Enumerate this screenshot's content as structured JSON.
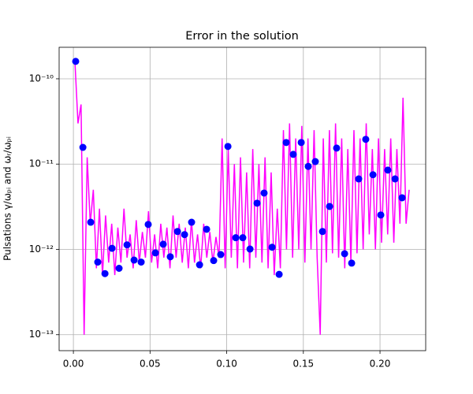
{
  "chart_data": {
    "type": "line",
    "title": "Error in the solution",
    "y_label": "Pulsations  γ/ωₚᵢ and ωᵣ/ωₚᵢ",
    "log_y": true,
    "grid": true,
    "xlim": [
      -0.0093,
      0.2298
    ],
    "ylim": [
      6.5e-14,
      2.34e-10
    ],
    "xticks": [
      {
        "value": 0,
        "label": "0.00"
      },
      {
        "value": 0.05,
        "label": "0.05"
      },
      {
        "value": 0.1,
        "label": "0.10"
      },
      {
        "value": 0.15,
        "label": "0.15"
      },
      {
        "value": 0.2,
        "label": "0.20"
      }
    ],
    "yticks": [
      {
        "value": 1e-13,
        "label": "10⁻¹³"
      },
      {
        "value": 1e-12,
        "label": "10⁻¹²"
      },
      {
        "value": 1e-11,
        "label": "10⁻¹¹"
      },
      {
        "value": 1e-10,
        "label": "10⁻¹⁰"
      }
    ],
    "series": [
      {
        "style": "line",
        "color": "#ff00ff",
        "x": [
          0.001,
          0.003,
          0.005,
          0.007,
          0.009,
          0.011,
          0.013,
          0.015,
          0.017,
          0.019,
          0.021,
          0.023,
          0.025,
          0.027,
          0.029,
          0.031,
          0.033,
          0.035,
          0.037,
          0.039,
          0.041,
          0.043,
          0.045,
          0.047,
          0.049,
          0.051,
          0.053,
          0.055,
          0.057,
          0.059,
          0.061,
          0.063,
          0.065,
          0.067,
          0.069,
          0.071,
          0.073,
          0.075,
          0.077,
          0.079,
          0.081,
          0.083,
          0.085,
          0.087,
          0.089,
          0.091,
          0.093,
          0.095,
          0.097,
          0.099,
          0.101,
          0.103,
          0.105,
          0.107,
          0.109,
          0.111,
          0.113,
          0.115,
          0.117,
          0.119,
          0.121,
          0.123,
          0.125,
          0.127,
          0.129,
          0.131,
          0.133,
          0.135,
          0.137,
          0.139,
          0.141,
          0.143,
          0.145,
          0.147,
          0.149,
          0.151,
          0.153,
          0.155,
          0.157,
          0.159,
          0.161,
          0.163,
          0.165,
          0.167,
          0.169,
          0.171,
          0.173,
          0.175,
          0.177,
          0.179,
          0.181,
          0.183,
          0.185,
          0.187,
          0.189,
          0.191,
          0.193,
          0.195,
          0.197,
          0.199,
          0.201,
          0.203,
          0.205,
          0.207,
          0.209,
          0.211,
          0.213,
          0.215,
          0.217,
          0.219
        ],
        "values": [
          1.6e-10,
          3e-11,
          5e-11,
          1e-13,
          1.2e-11,
          2e-12,
          5e-12,
          6e-13,
          3e-12,
          5e-13,
          2.5e-12,
          7e-13,
          2e-12,
          5e-13,
          1.8e-12,
          7e-13,
          3e-12,
          8e-13,
          1.5e-12,
          6e-13,
          2.2e-12,
          7e-13,
          1.6e-12,
          8e-13,
          2.8e-12,
          7e-13,
          1.5e-12,
          6e-13,
          2e-12,
          8e-13,
          1.8e-12,
          6e-13,
          2.5e-12,
          8e-13,
          2e-12,
          7e-13,
          1.8e-12,
          6e-13,
          2.2e-12,
          7e-13,
          1.5e-12,
          6e-13,
          2e-12,
          8e-13,
          1.6e-12,
          7e-13,
          1.4e-12,
          8e-13,
          2e-11,
          6e-13,
          1.5e-11,
          8e-13,
          1e-11,
          6e-13,
          1.2e-11,
          7e-13,
          8e-12,
          6e-13,
          1.5e-11,
          8e-13,
          1e-11,
          7e-13,
          1.2e-11,
          6e-13,
          8e-12,
          5e-13,
          3e-12,
          6e-13,
          2.5e-11,
          1e-12,
          3e-11,
          8e-13,
          2e-11,
          1e-12,
          2.8e-11,
          7e-13,
          2e-11,
          1e-12,
          2.5e-11,
          8e-13,
          1e-13,
          2e-11,
          7e-13,
          2.5e-11,
          9e-13,
          3e-11,
          8e-13,
          2e-11,
          6e-13,
          1.5e-11,
          7e-13,
          2.5e-11,
          9e-13,
          2e-11,
          1e-12,
          3e-11,
          1.5e-12,
          1.5e-11,
          1e-12,
          2e-11,
          1.2e-12,
          1.5e-11,
          1.5e-12,
          2e-11,
          1.2e-12,
          1.5e-11,
          2e-12,
          6e-11,
          2e-12,
          5e-12
        ]
      },
      {
        "style": "markers",
        "color": "#0000ff",
        "x": [
          0.0015,
          0.0062,
          0.0113,
          0.0159,
          0.0206,
          0.0252,
          0.0298,
          0.035,
          0.0396,
          0.0442,
          0.0488,
          0.0535,
          0.0586,
          0.0632,
          0.0679,
          0.0725,
          0.0771,
          0.0823,
          0.0869,
          0.0915,
          0.0961,
          0.1008,
          0.1059,
          0.1105,
          0.1152,
          0.1198,
          0.1244,
          0.1296,
          0.1342,
          0.1388,
          0.1434,
          0.1486,
          0.1532,
          0.1578,
          0.1625,
          0.1671,
          0.1717,
          0.1769,
          0.1815,
          0.1861,
          0.1907,
          0.1954,
          0.2005,
          0.2051,
          0.2098,
          0.2144
        ],
        "values": [
          1.6e-10,
          1.57e-11,
          2.08e-12,
          7.1e-13,
          5.2e-13,
          1.03e-12,
          6e-13,
          1.13e-12,
          7.5e-13,
          7.1e-13,
          1.96e-12,
          9.1e-13,
          1.15e-12,
          8.2e-13,
          1.62e-12,
          1.49e-12,
          2.08e-12,
          6.6e-13,
          1.72e-12,
          7.4e-13,
          8.7e-13,
          1.61e-11,
          1.37e-12,
          1.37e-12,
          1.01e-12,
          3.48e-12,
          4.58e-12,
          1.06e-12,
          5.1e-13,
          1.79e-11,
          1.3e-11,
          1.79e-11,
          9.4e-12,
          1.07e-11,
          1.62e-12,
          3.19e-12,
          1.54e-11,
          8.9e-13,
          6.9e-13,
          6.7e-12,
          1.95e-11,
          7.5e-12,
          2.53e-12,
          8.5e-12,
          6.7e-12,
          4.03e-12
        ]
      }
    ]
  }
}
